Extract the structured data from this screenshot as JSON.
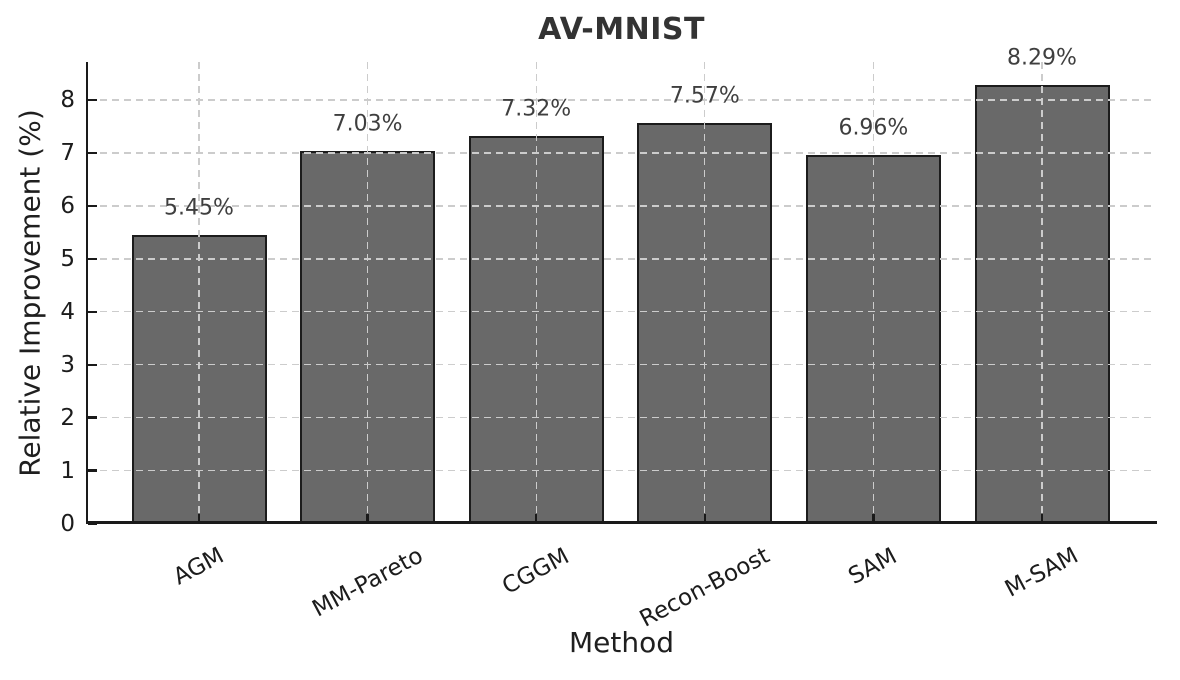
{
  "chart_data": {
    "type": "bar",
    "title": "AV-MNIST",
    "xlabel": "Method",
    "ylabel": "Relative Improvement (%)",
    "categories": [
      "AGM",
      "MM-Pareto",
      "CGGM",
      "Recon-Boost",
      "SAM",
      "M-SAM"
    ],
    "values": [
      5.45,
      7.03,
      7.32,
      7.57,
      6.96,
      8.29
    ],
    "bar_labels": [
      "5.45%",
      "7.03%",
      "7.32%",
      "7.57%",
      "6.96%",
      "8.29%"
    ],
    "yticks": [
      0,
      1,
      2,
      3,
      4,
      5,
      6,
      7,
      8
    ],
    "ylim": [
      0,
      8.72
    ],
    "grid": true,
    "legend": "none",
    "bar_color": "#696969",
    "bar_edge_color": "#1c1c1c",
    "grid_color": "#cccccc",
    "axis_color": "#1a1a1a",
    "text_color": "#1c1c1c",
    "x_tick_rotation_deg": 28
  }
}
